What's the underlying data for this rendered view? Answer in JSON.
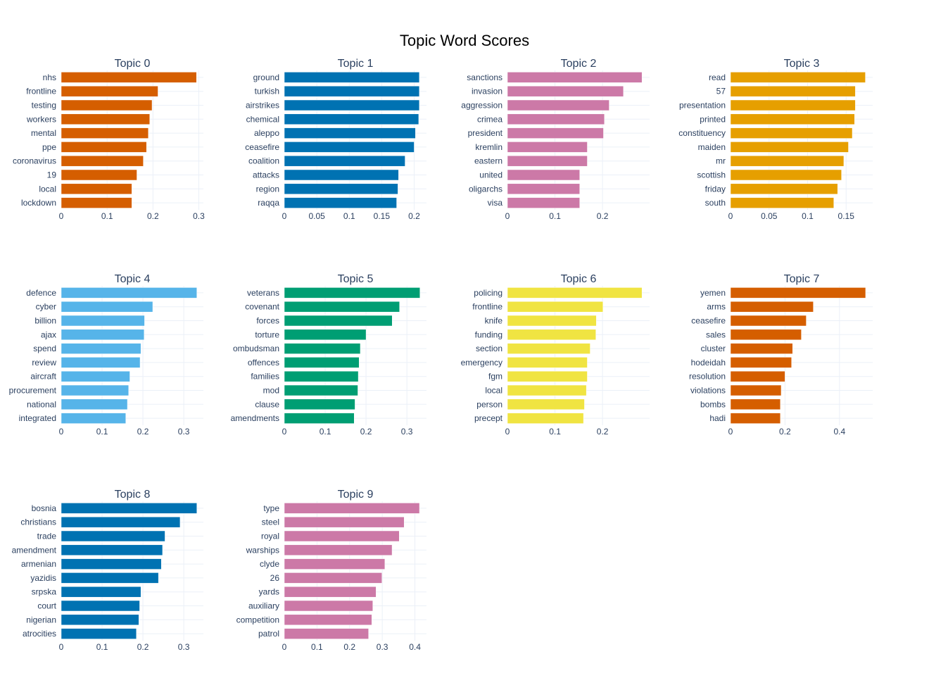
{
  "chart_data": {
    "type": "bar",
    "orientation": "horizontal",
    "title": "Topic Word Scores",
    "grid": true,
    "panels": [
      {
        "title": "Topic 0",
        "color": "#D55E00",
        "xlim": [
          0,
          0.31
        ],
        "ticks": [
          0,
          0.1,
          0.2,
          0.3
        ],
        "tick_labels": [
          "0",
          "0.1",
          "0.2",
          "0.3"
        ],
        "categories": [
          "nhs",
          "frontline",
          "testing",
          "workers",
          "mental",
          "ppe",
          "coronavirus",
          "19",
          "local",
          "lockdown"
        ],
        "values": [
          0.295,
          0.211,
          0.198,
          0.193,
          0.19,
          0.186,
          0.179,
          0.165,
          0.154,
          0.154
        ]
      },
      {
        "title": "Topic 1",
        "color": "#0072B2",
        "xlim": [
          0,
          0.219
        ],
        "ticks": [
          0,
          0.05,
          0.1,
          0.15,
          0.2
        ],
        "tick_labels": [
          "0",
          "0.05",
          "0.1",
          "0.15",
          "0.2"
        ],
        "categories": [
          "ground",
          "turkish",
          "airstrikes",
          "chemical",
          "aleppo",
          "ceasefire",
          "coalition",
          "attacks",
          "region",
          "raqqa"
        ],
        "values": [
          0.208,
          0.208,
          0.208,
          0.207,
          0.202,
          0.2,
          0.186,
          0.176,
          0.175,
          0.173
        ]
      },
      {
        "title": "Topic 2",
        "color": "#CC79A7",
        "xlim": [
          0,
          0.299
        ],
        "ticks": [
          0,
          0.1,
          0.2
        ],
        "tick_labels": [
          "0",
          "0.1",
          "0.2"
        ],
        "categories": [
          "sanctions",
          "invasion",
          "aggression",
          "crimea",
          "president",
          "kremlin",
          "eastern",
          "united",
          "oligarchs",
          "visa"
        ],
        "values": [
          0.283,
          0.244,
          0.214,
          0.204,
          0.202,
          0.168,
          0.168,
          0.152,
          0.152,
          0.152
        ]
      },
      {
        "title": "Topic 3",
        "color": "#E69F00",
        "xlim": [
          0,
          0.1845
        ],
        "ticks": [
          0,
          0.05,
          0.1,
          0.15
        ],
        "tick_labels": [
          "0",
          "0.05",
          "0.1",
          "0.15"
        ],
        "categories": [
          "read",
          "57",
          "presentation",
          "printed",
          "constituency",
          "maiden",
          "mr",
          "scottish",
          "friday",
          "south"
        ],
        "values": [
          0.175,
          0.162,
          0.162,
          0.161,
          0.158,
          0.153,
          0.147,
          0.144,
          0.139,
          0.134
        ]
      },
      {
        "title": "Topic 4",
        "color": "#56B4E9",
        "xlim": [
          0,
          0.348
        ],
        "ticks": [
          0,
          0.1,
          0.2,
          0.3
        ],
        "tick_labels": [
          "0",
          "0.1",
          "0.2",
          "0.3"
        ],
        "categories": [
          "defence",
          "cyber",
          "billion",
          "ajax",
          "spend",
          "review",
          "aircraft",
          "procurement",
          "national",
          "integrated"
        ],
        "values": [
          0.332,
          0.224,
          0.204,
          0.203,
          0.195,
          0.193,
          0.168,
          0.165,
          0.162,
          0.158
        ]
      },
      {
        "title": "Topic 5",
        "color": "#009E73",
        "xlim": [
          0,
          0.348
        ],
        "ticks": [
          0,
          0.1,
          0.2,
          0.3
        ],
        "tick_labels": [
          "0",
          "0.1",
          "0.2",
          "0.3"
        ],
        "categories": [
          "veterans",
          "covenant",
          "forces",
          "torture",
          "ombudsman",
          "offences",
          "families",
          "mod",
          "clause",
          "amendments"
        ],
        "values": [
          0.332,
          0.282,
          0.264,
          0.2,
          0.186,
          0.183,
          0.181,
          0.18,
          0.173,
          0.171
        ]
      },
      {
        "title": "Topic 6",
        "color": "#F0E442",
        "xlim": [
          0,
          0.299
        ],
        "ticks": [
          0,
          0.1,
          0.2
        ],
        "tick_labels": [
          "0",
          "0.1",
          "0.2"
        ],
        "categories": [
          "policing",
          "frontline",
          "knife",
          "funding",
          "section",
          "emergency",
          "fgm",
          "local",
          "person",
          "precept"
        ],
        "values": [
          0.283,
          0.201,
          0.187,
          0.186,
          0.174,
          0.168,
          0.168,
          0.166,
          0.162,
          0.16
        ]
      },
      {
        "title": "Topic 7",
        "color": "#D55E00",
        "xlim": [
          0,
          0.522
        ],
        "ticks": [
          0,
          0.2,
          0.4
        ],
        "tick_labels": [
          "0",
          "0.2",
          "0.4"
        ],
        "categories": [
          "yemen",
          "arms",
          "ceasefire",
          "sales",
          "cluster",
          "hodeidah",
          "resolution",
          "violations",
          "bombs",
          "hadi"
        ],
        "values": [
          0.496,
          0.304,
          0.278,
          0.26,
          0.228,
          0.224,
          0.2,
          0.186,
          0.183,
          0.183
        ]
      },
      {
        "title": "Topic 8",
        "color": "#0072B2",
        "xlim": [
          0,
          0.348
        ],
        "ticks": [
          0,
          0.1,
          0.2,
          0.3
        ],
        "tick_labels": [
          "0",
          "0.1",
          "0.2",
          "0.3"
        ],
        "categories": [
          "bosnia",
          "christians",
          "trade",
          "amendment",
          "armenian",
          "yazidis",
          "srpska",
          "court",
          "nigerian",
          "atrocities"
        ],
        "values": [
          0.332,
          0.291,
          0.254,
          0.248,
          0.245,
          0.238,
          0.195,
          0.192,
          0.19,
          0.184
        ]
      },
      {
        "title": "Topic 9",
        "color": "#CC79A7",
        "xlim": [
          0,
          0.4355
        ],
        "ticks": [
          0,
          0.1,
          0.2,
          0.3,
          0.4
        ],
        "tick_labels": [
          "0",
          "0.1",
          "0.2",
          "0.3",
          "0.4"
        ],
        "categories": [
          "type",
          "steel",
          "royal",
          "warships",
          "clyde",
          "26",
          "yards",
          "auxiliary",
          "competition",
          "patrol"
        ],
        "values": [
          0.414,
          0.367,
          0.352,
          0.33,
          0.308,
          0.299,
          0.281,
          0.271,
          0.268,
          0.258
        ]
      }
    ]
  }
}
